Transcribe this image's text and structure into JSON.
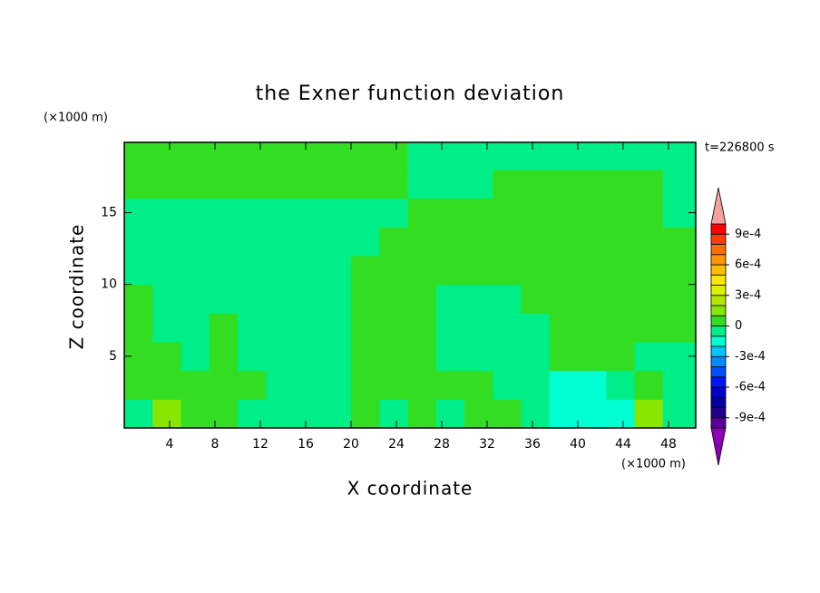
{
  "chart_data": {
    "type": "contour",
    "title": "the Exner function deviation",
    "xlabel": "X coordinate",
    "ylabel": "Z coordinate",
    "x_unit": "(×1000 m)",
    "y_unit": "(×1000 m)",
    "time_label": "t=226800 s",
    "xlim": [
      0,
      50.4
    ],
    "ylim": [
      0,
      19.9
    ],
    "xticks": [
      4,
      8,
      12,
      16,
      20,
      24,
      28,
      32,
      36,
      40,
      44,
      48
    ],
    "yticks": [
      5,
      10,
      15
    ],
    "x": [
      1.25,
      3.75,
      6.25,
      8.75,
      11.25,
      13.75,
      16.25,
      18.75,
      21.25,
      23.75,
      26.25,
      28.75,
      31.25,
      33.75,
      36.25,
      38.75,
      41.25,
      43.75,
      46.25,
      48.75
    ],
    "z": [
      1,
      3,
      5,
      7,
      9,
      11,
      13,
      15,
      17,
      19
    ],
    "values": [
      [
        -5e-05,
        0.00015,
        5e-05,
        5e-05,
        -5e-05,
        -5e-05,
        -5e-05,
        -5e-05,
        5e-05,
        -5e-05,
        5e-05,
        -5e-05,
        5e-05,
        5e-05,
        -5e-05,
        -0.00015,
        -0.00015,
        -0.00015,
        0.00015,
        -5e-05
      ],
      [
        5e-05,
        5e-05,
        5e-05,
        5e-05,
        5e-05,
        -5e-05,
        -5e-05,
        -5e-05,
        5e-05,
        5e-05,
        5e-05,
        5e-05,
        5e-05,
        -5e-05,
        -5e-05,
        -0.00015,
        -0.00015,
        -5e-05,
        5e-05,
        -5e-05
      ],
      [
        5e-05,
        5e-05,
        -5e-05,
        5e-05,
        -5e-05,
        -5e-05,
        -5e-05,
        -5e-05,
        5e-05,
        5e-05,
        5e-05,
        -5e-05,
        -5e-05,
        -5e-05,
        -5e-05,
        5e-05,
        5e-05,
        5e-05,
        -5e-05,
        -5e-05
      ],
      [
        5e-05,
        -5e-05,
        -5e-05,
        5e-05,
        -5e-05,
        -5e-05,
        -5e-05,
        -5e-05,
        5e-05,
        5e-05,
        5e-05,
        -5e-05,
        -5e-05,
        -5e-05,
        -5e-05,
        5e-05,
        5e-05,
        5e-05,
        5e-05,
        5e-05
      ],
      [
        5e-05,
        -5e-05,
        -5e-05,
        -5e-05,
        -5e-05,
        -5e-05,
        -5e-05,
        -5e-05,
        5e-05,
        5e-05,
        5e-05,
        -5e-05,
        -5e-05,
        -5e-05,
        5e-05,
        5e-05,
        5e-05,
        5e-05,
        5e-05,
        5e-05
      ],
      [
        -5e-05,
        -5e-05,
        -5e-05,
        -5e-05,
        -5e-05,
        -5e-05,
        -5e-05,
        -5e-05,
        5e-05,
        5e-05,
        5e-05,
        5e-05,
        5e-05,
        5e-05,
        5e-05,
        5e-05,
        5e-05,
        5e-05,
        5e-05,
        5e-05
      ],
      [
        -5e-05,
        -5e-05,
        -5e-05,
        -5e-05,
        -5e-05,
        -5e-05,
        -5e-05,
        -5e-05,
        -5e-05,
        5e-05,
        5e-05,
        5e-05,
        5e-05,
        5e-05,
        5e-05,
        5e-05,
        5e-05,
        5e-05,
        5e-05,
        5e-05
      ],
      [
        -5e-05,
        -5e-05,
        -5e-05,
        -5e-05,
        -5e-05,
        -5e-05,
        -5e-05,
        -5e-05,
        -5e-05,
        -5e-05,
        5e-05,
        5e-05,
        5e-05,
        5e-05,
        5e-05,
        5e-05,
        5e-05,
        5e-05,
        5e-05,
        -5e-05
      ],
      [
        5e-05,
        5e-05,
        5e-05,
        5e-05,
        5e-05,
        5e-05,
        5e-05,
        5e-05,
        5e-05,
        5e-05,
        -5e-05,
        -5e-05,
        -5e-05,
        5e-05,
        5e-05,
        5e-05,
        5e-05,
        5e-05,
        5e-05,
        -5e-05
      ],
      [
        5e-05,
        5e-05,
        5e-05,
        5e-05,
        5e-05,
        5e-05,
        5e-05,
        5e-05,
        5e-05,
        5e-05,
        -5e-05,
        -5e-05,
        -5e-05,
        -5e-05,
        -5e-05,
        -5e-05,
        -5e-05,
        -5e-05,
        -5e-05,
        -5e-05
      ]
    ],
    "levels": [
      -0.001,
      -0.0009,
      -0.0008,
      -0.0007,
      -0.0006,
      -0.0005,
      -0.0004,
      -0.0003,
      -0.0002,
      -0.0001,
      0,
      0.0001,
      0.0002,
      0.0003,
      0.0004,
      0.0005,
      0.0006,
      0.0007,
      0.0008,
      0.0009,
      0.001
    ],
    "colors": [
      "#5a0096",
      "#23008c",
      "#0000a0",
      "#0000d2",
      "#0014ff",
      "#0050ff",
      "#008cff",
      "#00c8ff",
      "#00ffd2",
      "#00ee88",
      "#33dd22",
      "#88e600",
      "#b4e600",
      "#dcf000",
      "#ffe600",
      "#ffbe00",
      "#ff9600",
      "#ff6e00",
      "#ff3c00",
      "#ff0000"
    ],
    "extend_colors": [
      "#8c00b4",
      "#f4a0a0"
    ],
    "colorbar_ticks": [
      {
        "value": 0.0009,
        "label": "9e-4"
      },
      {
        "value": 0.0006,
        "label": "6e-4"
      },
      {
        "value": 0.0003,
        "label": "3e-4"
      },
      0,
      {
        "value": -0.0003,
        "label": "-3e-4"
      },
      {
        "value": -0.0006,
        "label": "-6e-4"
      },
      {
        "value": -0.0009,
        "label": "-9e-4"
      }
    ]
  }
}
